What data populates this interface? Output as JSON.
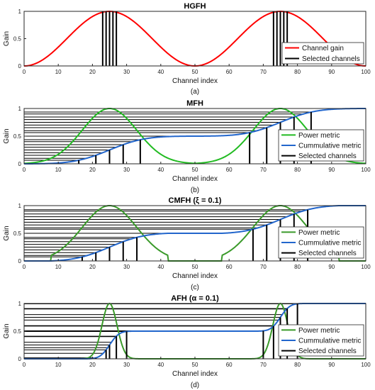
{
  "chart_data": [
    {
      "type": "line",
      "title": "HGFH",
      "caption": "(a)",
      "xlabel": "Channel index",
      "ylabel": "Gain",
      "xlim": [
        0,
        100
      ],
      "ylim": [
        0,
        1
      ],
      "x_ticks": [
        "0",
        "10",
        "20",
        "30",
        "40",
        "50",
        "60",
        "70",
        "80",
        "90",
        "100"
      ],
      "y_ticks": [
        "0",
        "0.5",
        "1"
      ],
      "grid": false,
      "legend_position": "bottom-right",
      "series": [
        {
          "name": "Channel gain",
          "color": "#ff0000",
          "kind": "raised_cosine",
          "period": 50,
          "peak": 25
        },
        {
          "name": "Selected channels",
          "color": "#000000",
          "kind": "stems",
          "x": [
            23,
            24,
            25,
            26,
            27,
            73,
            74,
            75,
            76,
            77
          ]
        }
      ]
    },
    {
      "type": "line",
      "title": "MFH",
      "caption": "(b)",
      "xlabel": "Channel index",
      "ylabel": "Gain",
      "xlim": [
        0,
        100
      ],
      "ylim": [
        0,
        1
      ],
      "x_ticks": [
        "0",
        "10",
        "20",
        "30",
        "40",
        "50",
        "60",
        "70",
        "80",
        "90",
        "100"
      ],
      "y_ticks": [
        "0",
        "0.5",
        "1"
      ],
      "grid": false,
      "legend_position": "bottom-right",
      "series": [
        {
          "name": "Power metric",
          "color": "#22bb22",
          "kind": "gaussian",
          "peaks": [
            25,
            75
          ],
          "sigma": 8
        },
        {
          "name": "Cummulative metric",
          "color": "#2266cc",
          "kind": "cumulative"
        },
        {
          "name": "Selected channels",
          "color": "#000000",
          "kind": "stems",
          "x": [
            16,
            21,
            25,
            29,
            34,
            66,
            71,
            75,
            79,
            84
          ]
        }
      ]
    },
    {
      "type": "line",
      "title": "CMFH (ξ = 0.1)",
      "caption": "(c)",
      "xlabel": "Channel index",
      "ylabel": "Gain",
      "xlim": [
        0,
        100
      ],
      "ylim": [
        0,
        1
      ],
      "x_ticks": [
        "0",
        "10",
        "20",
        "30",
        "40",
        "50",
        "60",
        "70",
        "80",
        "90",
        "100"
      ],
      "y_ticks": [
        "0",
        "0.5",
        "1"
      ],
      "grid": false,
      "legend_position": "bottom-right",
      "series": [
        {
          "name": "Power metric",
          "color": "#3a9a2a",
          "kind": "gaussian_clipped",
          "peaks": [
            25,
            75
          ],
          "sigma": 8,
          "floor": 0.1
        },
        {
          "name": "Cummulative metric",
          "color": "#2266cc",
          "kind": "cumulative"
        },
        {
          "name": "Selected channels",
          "color": "#000000",
          "kind": "stems",
          "x": [
            17,
            21,
            25,
            29,
            33,
            67,
            71,
            75,
            79,
            83
          ]
        }
      ]
    },
    {
      "type": "line",
      "title": "AFH (α = 0.1)",
      "caption": "(d)",
      "xlabel": "Channel index",
      "ylabel": "Gain",
      "xlim": [
        0,
        100
      ],
      "ylim": [
        0,
        1
      ],
      "x_ticks": [
        "0",
        "10",
        "20",
        "30",
        "40",
        "50",
        "60",
        "70",
        "80",
        "90",
        "100"
      ],
      "y_ticks": [
        "0",
        "0.5",
        "1"
      ],
      "grid": false,
      "legend_position": "bottom-right",
      "series": [
        {
          "name": "Power metric",
          "color": "#3a9a2a",
          "kind": "gaussian",
          "peaks": [
            25,
            75
          ],
          "sigma": 2.2
        },
        {
          "name": "Cummulative metric",
          "color": "#2266cc",
          "kind": "cumulative"
        },
        {
          "name": "Selected channels",
          "color": "#000000",
          "kind": "stems",
          "x": [
            21,
            24,
            25,
            27,
            30,
            70,
            73,
            75,
            77,
            80
          ]
        }
      ]
    }
  ]
}
